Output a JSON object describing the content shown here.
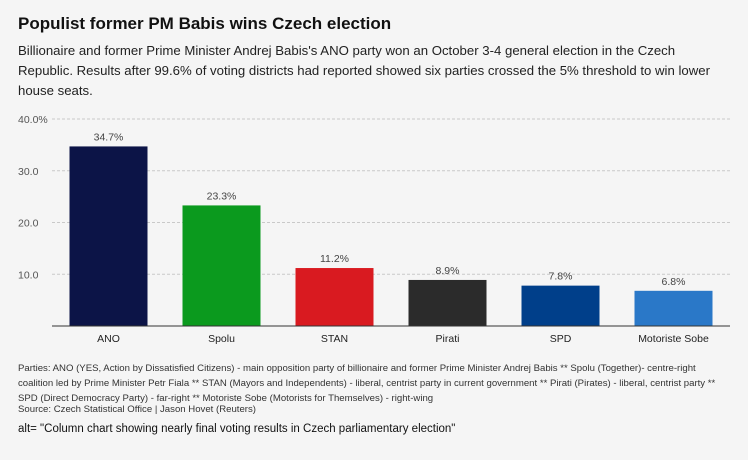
{
  "header": {
    "title": "Populist former PM Babis wins Czech election",
    "subtitle": "Billionaire and former Prime Minister Andrej Babis's ANO party won an October 3-4 general election in the Czech Republic. Results after 99.6% of voting districts had reported showed six parties crossed the 5% threshold to win lower house seats."
  },
  "chart_data": {
    "type": "bar",
    "categories": [
      "ANO",
      "Spolu",
      "STAN",
      "Pirati",
      "SPD",
      "Motoriste Sobe"
    ],
    "values": [
      34.7,
      23.3,
      11.2,
      8.9,
      7.8,
      6.8
    ],
    "value_labels": [
      "34.7%",
      "23.3%",
      "11.2%",
      "8.9%",
      "7.8%",
      "6.8%"
    ],
    "colors": [
      "#0c1447",
      "#0b9a1e",
      "#d91a20",
      "#2b2b2b",
      "#003f8a",
      "#2a78c8"
    ],
    "y_ticks": [
      10,
      20,
      30,
      40
    ],
    "y_tick_labels": [
      "10.0",
      "20.0",
      "30.0",
      "40.0%"
    ],
    "ylim": [
      0,
      40
    ],
    "grid": true,
    "legend": "none"
  },
  "footer": {
    "notes": "Parties: ANO (YES, Action by Dissatisfied Citizens) - main opposition party of billionaire and former Prime Minister Andrej Babis ** Spolu (Together)- centre-right coalition led by Prime Minister Petr Fiala ** STAN (Mayors and Independents) - liberal, centrist party in current government ** Pirati (Pirates) - liberal, centrist party ** SPD (Direct Democracy Party) - far-right ** Motoriste Sobe (Motorists for Themselves) - right-wing",
    "source": "Source: Czech Statistical Office | Jason Hovet (Reuters)",
    "alt": "alt= \"Column chart showing nearly final voting results in Czech parliamentary election\""
  }
}
